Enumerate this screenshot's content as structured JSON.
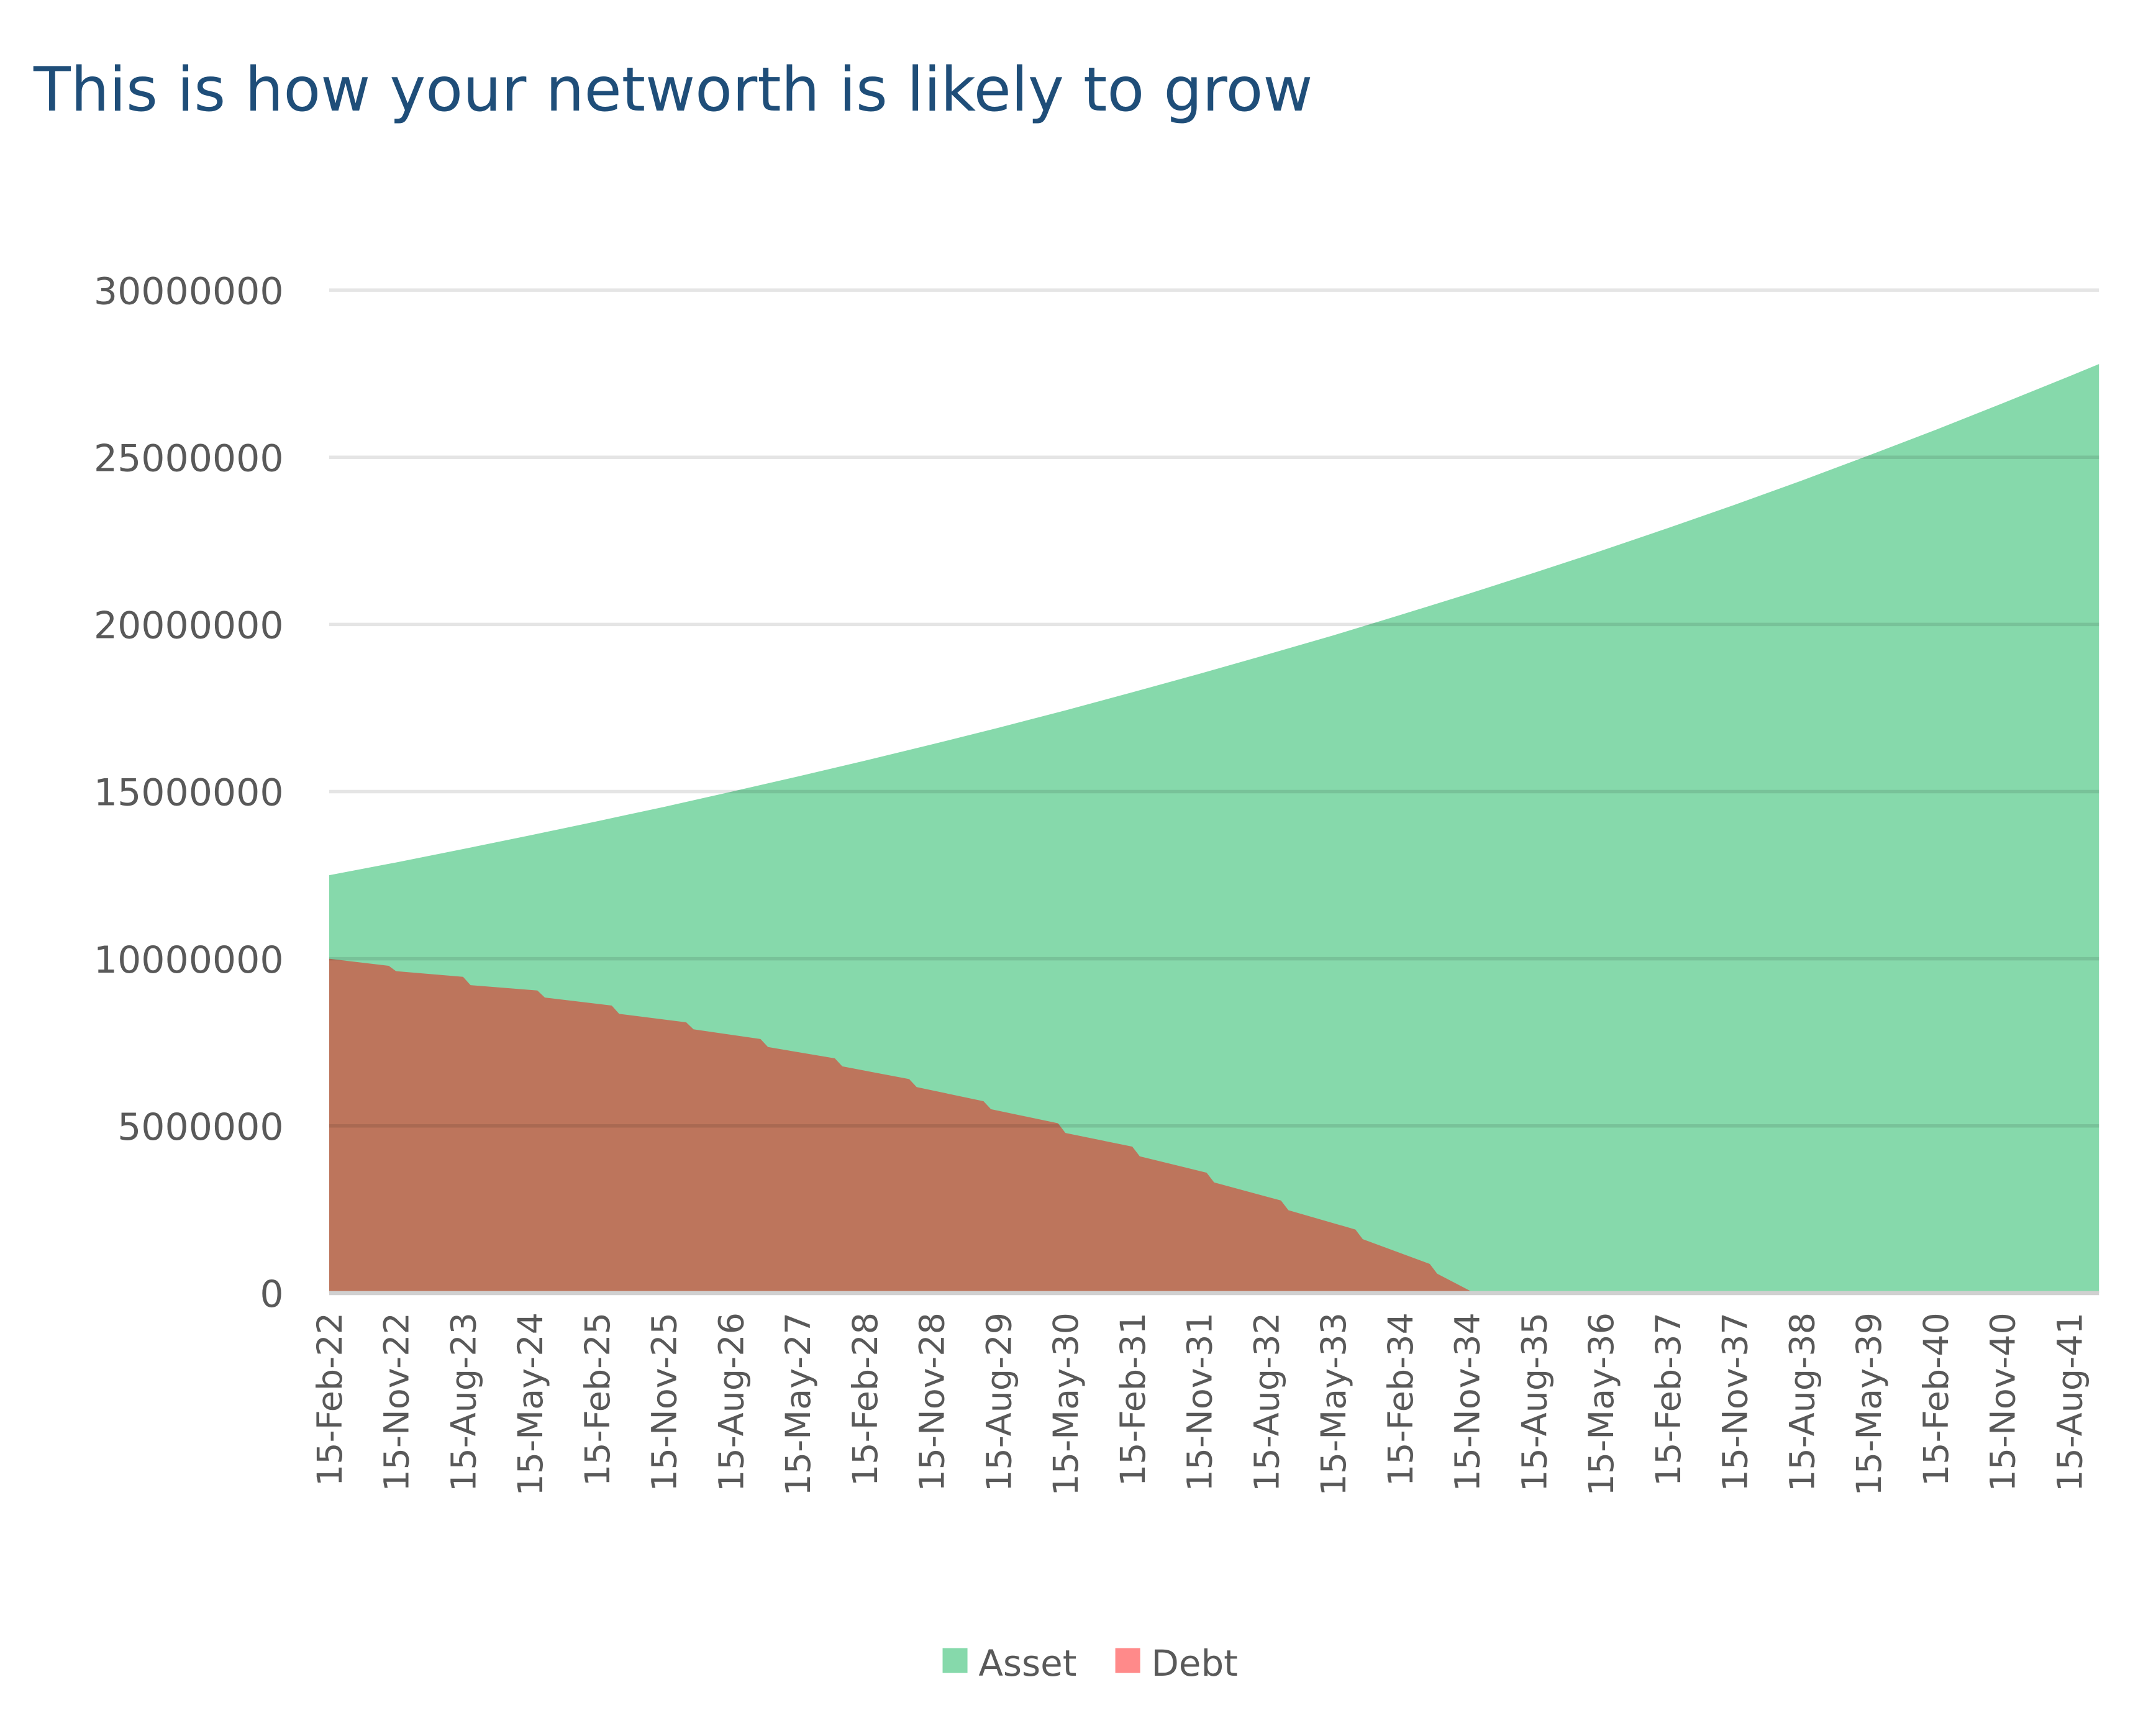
{
  "title": "This is how your networth is likely to grow",
  "chart_data": {
    "type": "area",
    "title": "This is how your networth is likely to grow",
    "xlabel": "",
    "ylabel": "",
    "ylim": [
      0,
      30000000
    ],
    "yticks": [
      "0",
      "5000000",
      "10000000",
      "15000000",
      "20000000",
      "25000000",
      "30000000"
    ],
    "x_range": [
      "15-Feb-22",
      "15-Dec-41"
    ],
    "xtick_labels": [
      "15-Feb-22",
      "15-Nov-22",
      "15-Aug-23",
      "15-May-24",
      "15-Feb-25",
      "15-Nov-25",
      "15-Aug-26",
      "15-May-27",
      "15-Feb-28",
      "15-Nov-28",
      "15-Aug-29",
      "15-May-30",
      "15-Feb-31",
      "15-Nov-31",
      "15-Aug-32",
      "15-May-33",
      "15-Feb-34",
      "15-Nov-34",
      "15-Aug-35",
      "15-May-36",
      "15-Feb-37",
      "15-Nov-37",
      "15-Aug-38",
      "15-May-39",
      "15-Feb-40",
      "15-Nov-40",
      "15-Aug-41"
    ],
    "grid": true,
    "legend_position": "bottom",
    "series": [
      {
        "name": "Asset",
        "color": "#86D9AB",
        "legend_color": "#86D9AB",
        "points": [
          [
            "15-Feb-22",
            12500000
          ],
          [
            "15-Nov-22",
            12880000
          ],
          [
            "15-Aug-23",
            13280000
          ],
          [
            "15-May-24",
            13690000
          ],
          [
            "15-Feb-25",
            14110000
          ],
          [
            "15-Nov-25",
            14540000
          ],
          [
            "15-Aug-26",
            14990000
          ],
          [
            "15-May-27",
            15450000
          ],
          [
            "15-Feb-28",
            15920000
          ],
          [
            "15-Nov-28",
            16410000
          ],
          [
            "15-Aug-29",
            16910000
          ],
          [
            "15-May-30",
            17430000
          ],
          [
            "15-Feb-31",
            17970000
          ],
          [
            "15-Nov-31",
            18520000
          ],
          [
            "15-Aug-32",
            19090000
          ],
          [
            "15-May-33",
            19670000
          ],
          [
            "15-Feb-34",
            20280000
          ],
          [
            "15-Nov-34",
            20900000
          ],
          [
            "15-Aug-35",
            21540000
          ],
          [
            "15-May-36",
            22200000
          ],
          [
            "15-Feb-37",
            22880000
          ],
          [
            "15-Nov-37",
            23580000
          ],
          [
            "15-Aug-38",
            24300000
          ],
          [
            "15-May-39",
            25050000
          ],
          [
            "15-Feb-40",
            25820000
          ],
          [
            "15-Nov-40",
            26610000
          ],
          [
            "15-Aug-41",
            27420000
          ],
          [
            "15-Dec-41",
            27790000
          ]
        ]
      },
      {
        "name": "Debt",
        "color": "#BD755C",
        "legend_color": "#FF8A8A",
        "points": [
          [
            "15-Feb-22",
            10000000
          ],
          [
            "15-Oct-22",
            9790000
          ],
          [
            "15-Nov-22",
            9630000
          ],
          [
            "15-Aug-23",
            9460000
          ],
          [
            "15-Sep-23",
            9210000
          ],
          [
            "15-Jun-24",
            9050000
          ],
          [
            "15-Jul-24",
            8840000
          ],
          [
            "15-Apr-25",
            8600000
          ],
          [
            "15-May-25",
            8350000
          ],
          [
            "15-Feb-26",
            8100000
          ],
          [
            "15-Mar-26",
            7890000
          ],
          [
            "15-Dec-26",
            7600000
          ],
          [
            "15-Jan-27",
            7360000
          ],
          [
            "15-Oct-27",
            7020000
          ],
          [
            "15-Nov-27",
            6780000
          ],
          [
            "15-Aug-28",
            6400000
          ],
          [
            "15-Sep-28",
            6160000
          ],
          [
            "15-Jun-29",
            5740000
          ],
          [
            "15-Jul-29",
            5500000
          ],
          [
            "15-Apr-30",
            5080000
          ],
          [
            "15-May-30",
            4790000
          ],
          [
            "15-Feb-31",
            4380000
          ],
          [
            "15-Mar-31",
            4090000
          ],
          [
            "15-Dec-31",
            3600000
          ],
          [
            "15-Jan-32",
            3310000
          ],
          [
            "15-Oct-32",
            2770000
          ],
          [
            "15-Nov-32",
            2480000
          ],
          [
            "15-Aug-33",
            1900000
          ],
          [
            "15-Sep-33",
            1610000
          ],
          [
            "15-Jun-34",
            870000
          ],
          [
            "15-Jul-34",
            580000
          ],
          [
            "15-Dec-34",
            0
          ],
          [
            "15-Dec-41",
            0
          ]
        ]
      }
    ]
  }
}
